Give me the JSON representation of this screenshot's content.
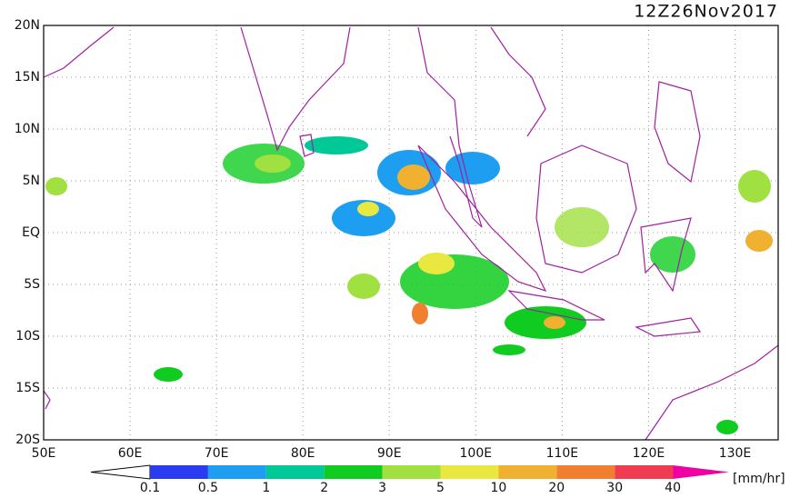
{
  "title": "12Z26Nov2017",
  "lat_labels": [
    "20N",
    "15N",
    "10N",
    "5N",
    "EQ",
    "5S",
    "10S",
    "15S",
    "20S"
  ],
  "lon_labels": [
    "50E",
    "60E",
    "70E",
    "80E",
    "90E",
    "100E",
    "110E",
    "120E",
    "130E"
  ],
  "colorbar": {
    "labels": [
      "0.1",
      "0.5",
      "1",
      "2",
      "3",
      "5",
      "10",
      "20",
      "30",
      "40"
    ],
    "colors": [
      "#ffffff",
      "#2a3cf0",
      "#1e9ef0",
      "#00c896",
      "#10cc20",
      "#a0e040",
      "#e8e840",
      "#f0b030",
      "#f08030",
      "#f03c50",
      "#f000a0"
    ],
    "unit": "[mm/hr]"
  }
}
